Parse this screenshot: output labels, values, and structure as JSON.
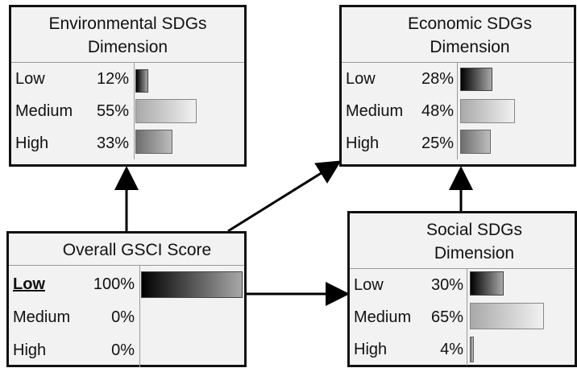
{
  "nodes": {
    "environmental": {
      "title_line1": "Environmental SDGs",
      "title_line2": "Dimension",
      "states": [
        {
          "label": "Low",
          "percent": "12%",
          "value": 12
        },
        {
          "label": "Medium",
          "percent": "55%",
          "value": 55
        },
        {
          "label": "High",
          "percent": "33%",
          "value": 33
        }
      ]
    },
    "economic": {
      "title_line1": "Economic SDGs",
      "title_line2": "Dimension",
      "states": [
        {
          "label": "Low",
          "percent": "28%",
          "value": 28
        },
        {
          "label": "Medium",
          "percent": "48%",
          "value": 48
        },
        {
          "label": "High",
          "percent": "25%",
          "value": 25
        }
      ]
    },
    "overall": {
      "title_line1": "Overall GSCI Score",
      "states": [
        {
          "label": "Low",
          "percent": "100%",
          "value": 100
        },
        {
          "label": "Medium",
          "percent": "0%",
          "value": 0
        },
        {
          "label": "High",
          "percent": "0%",
          "value": 0
        }
      ]
    },
    "social": {
      "title_line1": "Social SDGs",
      "title_line2": "Dimension",
      "states": [
        {
          "label": "Low",
          "percent": "30%",
          "value": 30
        },
        {
          "label": "Medium",
          "percent": "65%",
          "value": 65
        },
        {
          "label": "High",
          "percent": "4%",
          "value": 4
        }
      ]
    }
  },
  "colors": {
    "border": "#111111",
    "node_background": "#f2f2f2",
    "bar_dark": "#000000",
    "bar_light": "#f1f1f1"
  }
}
